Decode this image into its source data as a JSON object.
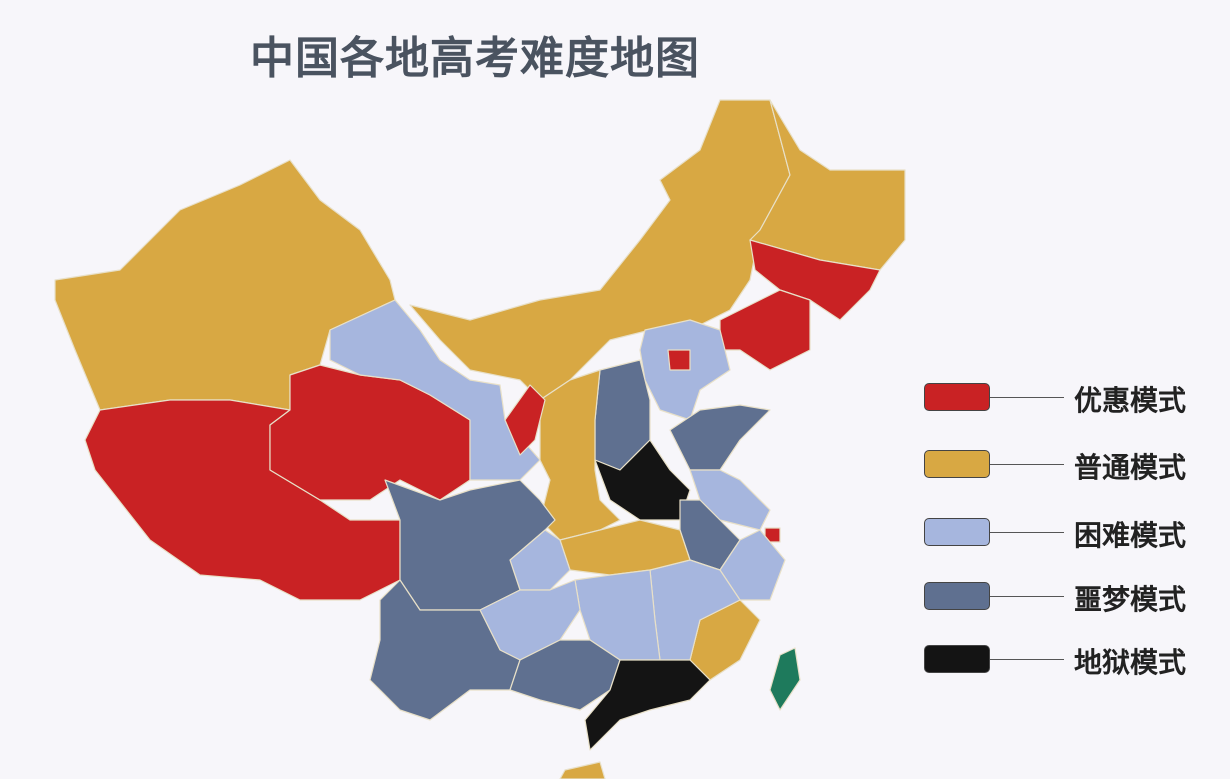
{
  "title": "中国各地高考难度地图",
  "legend": [
    {
      "label": "优惠模式",
      "color": "#c92224"
    },
    {
      "label": "普通模式",
      "color": "#d8a843"
    },
    {
      "label": "困难模式",
      "color": "#a6b6de"
    },
    {
      "label": "噩梦模式",
      "color": "#5f7090"
    },
    {
      "label": "地狱模式",
      "color": "#141414"
    }
  ],
  "unclassified_color": "#1e7a5c",
  "regions": {
    "xinjiang": 1,
    "tibet": 0,
    "qinghai": 0,
    "gansu": 2,
    "inner_mongolia": 1,
    "heilongjiang": 1,
    "jilin": 0,
    "liaoning": 0,
    "hebei": 2,
    "beijing": 0,
    "shanxi": 3,
    "shaanxi": 1,
    "ningxia": 0,
    "henan": 4,
    "shandong": 3,
    "jiangsu": 2,
    "anhui": 3,
    "shanghai": 0,
    "zhejiang": 2,
    "fujian": 1,
    "jiangxi": 2,
    "hubei": 1,
    "hunan": 2,
    "chongqing": 2,
    "sichuan": 3,
    "guizhou": 2,
    "yunnan": 3,
    "guangxi": 3,
    "guangdong": 4,
    "hainan": 1,
    "taiwan": null
  }
}
